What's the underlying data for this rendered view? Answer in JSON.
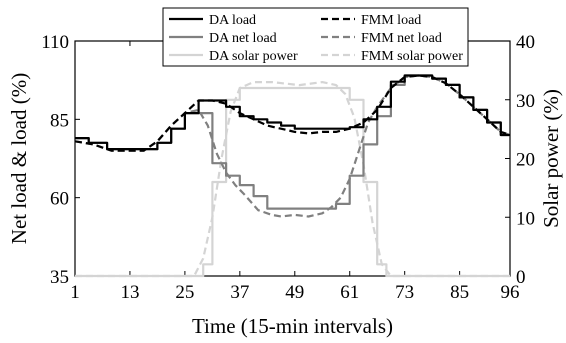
{
  "chart_data": {
    "type": "line",
    "xlabel": "Time (15-min intervals)",
    "ylabel_left": "Net load & load (%)",
    "ylabel_right": "Solar power (%)",
    "xlim": [
      1,
      96
    ],
    "ylim_left": [
      35,
      110
    ],
    "ylim_right": [
      0,
      40
    ],
    "xticks": [
      1,
      13,
      25,
      37,
      49,
      61,
      73,
      85,
      96
    ],
    "yticks_left": [
      35,
      60,
      85,
      110
    ],
    "yticks_right": [
      0,
      10,
      20,
      30,
      40
    ],
    "grid": false,
    "legend_position": "top-center",
    "series": [
      {
        "name": "DA load",
        "axis": "left",
        "style": "solid",
        "color": "#000000",
        "step": true,
        "x": [
          1,
          4,
          8,
          16,
          19,
          22,
          25,
          28,
          31,
          34,
          37,
          40,
          43,
          46,
          49,
          52,
          55,
          58,
          61,
          64,
          67,
          70,
          73,
          76,
          79,
          82,
          85,
          88,
          91,
          94,
          96
        ],
        "y": [
          79,
          77.5,
          75.5,
          75.5,
          77.5,
          82,
          87,
          91,
          91,
          89,
          86,
          85,
          84,
          83,
          82,
          82,
          82,
          82,
          82.5,
          85,
          89,
          97,
          99,
          99,
          98,
          96,
          92,
          88,
          84,
          80,
          80
        ]
      },
      {
        "name": "FMM load",
        "axis": "left",
        "style": "dashed",
        "color": "#000000",
        "step": false,
        "x": [
          1,
          5,
          9,
          13,
          16,
          19,
          22,
          25,
          28,
          31,
          34,
          37,
          40,
          43,
          46,
          49,
          52,
          55,
          58,
          61,
          64,
          67,
          70,
          73,
          76,
          79,
          82,
          85,
          88,
          91,
          94,
          96
        ],
        "y": [
          78,
          77,
          75,
          75,
          75,
          78,
          83,
          87,
          91,
          91,
          90,
          87,
          85,
          83,
          82,
          81,
          80.5,
          81,
          81,
          82,
          84,
          88,
          95,
          98.5,
          99,
          98.5,
          96.5,
          93,
          89,
          85,
          81,
          80
        ]
      },
      {
        "name": "DA net load",
        "axis": "left",
        "style": "solid",
        "color": "#808080",
        "step": true,
        "x": [
          1,
          4,
          8,
          16,
          19,
          22,
          25,
          28,
          31,
          34,
          37,
          40,
          43,
          46,
          49,
          52,
          55,
          58,
          61,
          64,
          67,
          70,
          73,
          76,
          79,
          82,
          85,
          88,
          91,
          94,
          96
        ],
        "y": [
          79,
          77.5,
          75.5,
          75.5,
          77.5,
          82,
          87,
          87,
          71,
          67,
          64,
          60.5,
          56.5,
          56.5,
          56.5,
          56.5,
          56.5,
          58,
          67,
          77,
          86,
          96,
          99,
          99,
          98,
          96,
          92,
          88,
          84,
          80,
          80
        ]
      },
      {
        "name": "FMM net load",
        "axis": "left",
        "style": "dashed",
        "color": "#808080",
        "step": false,
        "x": [
          1,
          5,
          9,
          13,
          16,
          19,
          22,
          25,
          28,
          30,
          32,
          34,
          36,
          38,
          41,
          44,
          46,
          49,
          52,
          55,
          57,
          59,
          61,
          63,
          65,
          67,
          70,
          73,
          76,
          79,
          82,
          85,
          88,
          91,
          94,
          96
        ],
        "y": [
          78,
          77,
          75,
          75,
          75,
          78,
          83,
          87,
          88,
          83,
          74,
          68,
          64,
          61,
          56,
          54.5,
          54,
          54.5,
          54,
          55,
          57,
          60,
          66,
          75,
          84,
          89,
          95,
          98.5,
          99,
          98.5,
          96.5,
          93,
          89,
          85,
          81,
          80
        ]
      },
      {
        "name": "DA solar power",
        "axis": "right",
        "style": "solid",
        "color": "#d4d4d4",
        "step": true,
        "x": [
          1,
          29,
          31,
          34,
          37,
          58,
          61,
          64,
          67,
          69,
          96
        ],
        "y": [
          0,
          2,
          16,
          30,
          32,
          32,
          30,
          16,
          2,
          0,
          0
        ]
      },
      {
        "name": "FMM solar power",
        "axis": "right",
        "style": "dashed",
        "color": "#d4d4d4",
        "step": false,
        "x": [
          1,
          27,
          29,
          31,
          33,
          35,
          37,
          40,
          44,
          50,
          55,
          58,
          60,
          62,
          64,
          66,
          68,
          70,
          96
        ],
        "y": [
          0,
          0,
          3,
          10,
          20,
          28,
          32,
          33,
          33,
          32.5,
          33,
          32.5,
          31,
          27,
          19,
          9,
          2,
          0,
          0
        ]
      }
    ]
  }
}
